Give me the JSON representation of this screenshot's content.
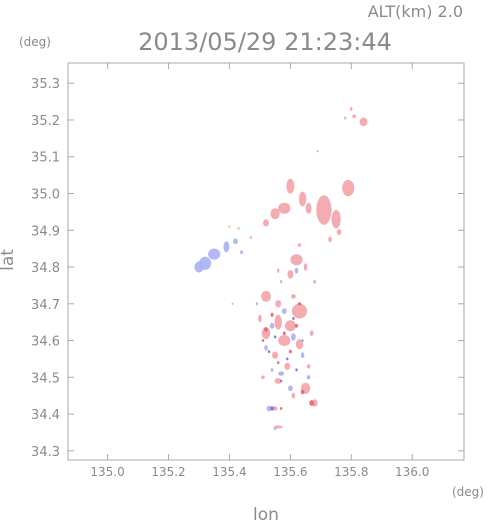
{
  "header": {
    "alt_label": "ALT(km) 2.0",
    "datetime": "2013/05/29 21:23:44"
  },
  "chart_data": {
    "type": "scatter",
    "title": "2013/05/29 21:23:44",
    "xlabel": "lon",
    "ylabel": "lat",
    "x_unit": "(deg)",
    "y_unit": "(deg)",
    "xlim": [
      134.87,
      136.17
    ],
    "ylim": [
      34.275,
      35.355
    ],
    "x_ticks": [
      "135.0",
      "135.2",
      "135.4",
      "135.6",
      "135.8",
      "136.0"
    ],
    "y_ticks": [
      "34.3",
      "34.4",
      "34.5",
      "34.6",
      "34.7",
      "34.8",
      "34.9",
      "35.0",
      "35.1",
      "35.2",
      "35.3"
    ],
    "grid": false,
    "colors": {
      "positive": "#f3a3a8",
      "negative": "#aab0f0",
      "strong_positive": "#e8646e",
      "strong_negative": "#6e72e0",
      "axis": "#aaaaaa",
      "text": "#8a8a8a"
    },
    "series": [
      {
        "points": [
          [
            135.84,
            35.195,
            0.013,
            0.012
          ],
          [
            135.81,
            35.21,
            0.007,
            0.005
          ],
          [
            135.78,
            35.205,
            0.004,
            0.004
          ],
          [
            135.8,
            35.23,
            0.004,
            0.006
          ],
          [
            135.69,
            35.115,
            0.004,
            0.003
          ],
          [
            135.79,
            35.015,
            0.02,
            0.022
          ],
          [
            135.71,
            34.955,
            0.025,
            0.04
          ],
          [
            135.75,
            34.93,
            0.015,
            0.025
          ],
          [
            135.6,
            35.02,
            0.013,
            0.02
          ],
          [
            135.64,
            34.985,
            0.012,
            0.02
          ],
          [
            135.58,
            34.96,
            0.02,
            0.015
          ],
          [
            135.55,
            34.945,
            0.015,
            0.015
          ],
          [
            135.52,
            34.92,
            0.01,
            0.01
          ],
          [
            135.66,
            34.96,
            0.01,
            0.015
          ],
          [
            135.76,
            34.895,
            0.008,
            0.008
          ],
          [
            135.73,
            34.875,
            0.006,
            0.008
          ],
          [
            135.43,
            34.905,
            0.004,
            0.003
          ],
          [
            135.4,
            34.91,
            0.003,
            0.003
          ],
          [
            135.47,
            34.88,
            0.004,
            0.004
          ],
          [
            135.62,
            34.82,
            0.02,
            0.015
          ],
          [
            135.6,
            34.78,
            0.01,
            0.012
          ],
          [
            135.65,
            34.8,
            0.006,
            0.01
          ],
          [
            135.56,
            34.79,
            0.004,
            0.006
          ],
          [
            135.68,
            34.76,
            0.005,
            0.005
          ],
          [
            135.63,
            34.86,
            0.006,
            0.005
          ],
          [
            135.52,
            34.72,
            0.016,
            0.015
          ],
          [
            135.56,
            34.7,
            0.01,
            0.01
          ],
          [
            135.63,
            34.68,
            0.025,
            0.02
          ],
          [
            135.6,
            34.64,
            0.018,
            0.015
          ],
          [
            135.56,
            34.65,
            0.012,
            0.02
          ],
          [
            135.52,
            34.62,
            0.014,
            0.016
          ],
          [
            135.58,
            34.6,
            0.02,
            0.015
          ],
          [
            135.63,
            34.59,
            0.012,
            0.014
          ],
          [
            135.55,
            34.56,
            0.01,
            0.01
          ],
          [
            135.59,
            34.53,
            0.01,
            0.01
          ],
          [
            135.56,
            34.49,
            0.012,
            0.008
          ],
          [
            135.65,
            34.47,
            0.015,
            0.015
          ],
          [
            135.68,
            34.43,
            0.01,
            0.01
          ],
          [
            135.61,
            34.45,
            0.006,
            0.008
          ],
          [
            135.55,
            34.415,
            0.008,
            0.006
          ],
          [
            135.51,
            34.5,
            0.006,
            0.005
          ],
          [
            135.66,
            34.53,
            0.006,
            0.006
          ],
          [
            135.56,
            34.365,
            0.015,
            0.004
          ],
          [
            135.67,
            34.62,
            0.006,
            0.008
          ],
          [
            135.5,
            34.66,
            0.006,
            0.01
          ],
          [
            135.61,
            34.72,
            0.008,
            0.006
          ]
        ],
        "sign": "positive"
      },
      {
        "points": [
          [
            135.39,
            34.855,
            0.01,
            0.015
          ],
          [
            135.35,
            34.835,
            0.02,
            0.015
          ],
          [
            135.32,
            34.81,
            0.02,
            0.018
          ],
          [
            135.3,
            34.8,
            0.015,
            0.015
          ],
          [
            135.42,
            34.87,
            0.008,
            0.008
          ],
          [
            135.44,
            34.84,
            0.005,
            0.005
          ],
          [
            135.58,
            34.68,
            0.008,
            0.008
          ],
          [
            135.54,
            34.64,
            0.008,
            0.008
          ],
          [
            135.61,
            34.61,
            0.008,
            0.01
          ],
          [
            135.52,
            34.58,
            0.006,
            0.008
          ],
          [
            135.64,
            34.56,
            0.006,
            0.008
          ],
          [
            135.57,
            34.51,
            0.01,
            0.006
          ],
          [
            135.6,
            34.47,
            0.008,
            0.008
          ],
          [
            135.53,
            34.415,
            0.008,
            0.008
          ],
          [
            135.66,
            34.5,
            0.006,
            0.006
          ],
          [
            135.55,
            34.36,
            0.006,
            0.003
          ],
          [
            135.62,
            34.79,
            0.006,
            0.008
          ],
          [
            135.57,
            34.76,
            0.003,
            0.005
          ],
          [
            135.49,
            34.7,
            0.004,
            0.004
          ],
          [
            135.41,
            34.7,
            0.003,
            0.003
          ],
          [
            135.54,
            34.52,
            0.005,
            0.005
          ]
        ],
        "sign": "negative"
      },
      {
        "points": [
          [
            135.52,
            34.63,
            0.006,
            0.006
          ],
          [
            135.58,
            34.62,
            0.005,
            0.005
          ],
          [
            135.62,
            34.64,
            0.006,
            0.005
          ],
          [
            135.54,
            34.67,
            0.005,
            0.006
          ],
          [
            135.6,
            34.57,
            0.005,
            0.005
          ],
          [
            135.56,
            34.54,
            0.004,
            0.004
          ],
          [
            135.67,
            34.43,
            0.008,
            0.008
          ],
          [
            135.64,
            34.46,
            0.006,
            0.006
          ],
          [
            135.51,
            34.6,
            0.004,
            0.004
          ],
          [
            135.63,
            34.7,
            0.006,
            0.004
          ],
          [
            135.57,
            34.415,
            0.004,
            0.004
          ]
        ],
        "sign": "strong_positive"
      },
      {
        "points": [
          [
            135.55,
            34.61,
            0.004,
            0.004
          ],
          [
            135.61,
            34.66,
            0.004,
            0.004
          ],
          [
            135.59,
            34.55,
            0.004,
            0.004
          ],
          [
            135.53,
            34.57,
            0.004,
            0.004
          ],
          [
            135.64,
            34.6,
            0.003,
            0.003
          ],
          [
            135.54,
            34.415,
            0.006,
            0.006
          ],
          [
            135.57,
            34.49,
            0.004,
            0.003
          ],
          [
            135.62,
            34.52,
            0.004,
            0.004
          ]
        ],
        "sign": "strong_negative"
      }
    ]
  }
}
